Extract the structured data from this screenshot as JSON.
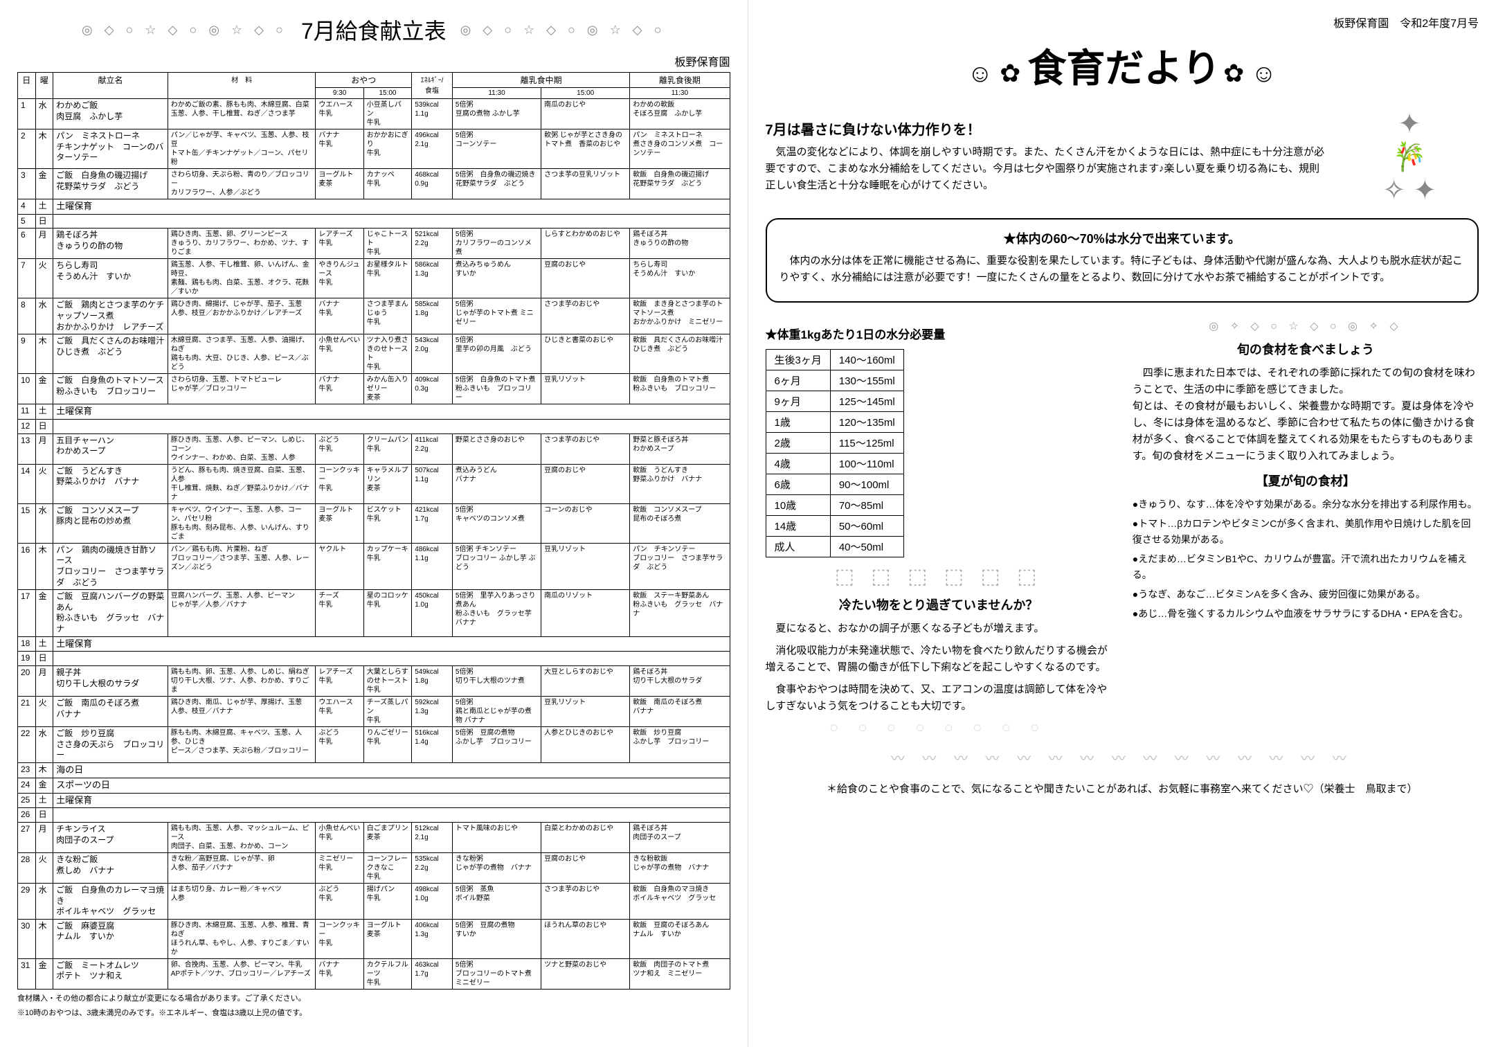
{
  "left": {
    "title": "7月給食献立表",
    "school": "板野保育園",
    "deco_icons": "◎ ◇ ○ ☆ ◇ ○ ◎ ☆ ◇ ○",
    "headers": {
      "day": "日",
      "dow": "曜",
      "menu": "献立名",
      "ingredients": "材　料",
      "snack": "おやつ",
      "snack930": "9:30",
      "snack1500": "15:00",
      "energy": "ｴﾈﾙｷﾞｰ/\n食塩",
      "wean_mid": "離乳食中期",
      "wean_mid1130": "11:30",
      "wean_mid1500": "15:00",
      "wean_late": "離乳食後期",
      "wean_late1130": "11:30"
    },
    "rows": [
      {
        "d": "1",
        "w": "水",
        "menu": "わかめご飯\n肉豆腐　ふかし芋",
        "ingr": "わかめご飯の素、豚もも肉、木綿豆腐、白菜\n玉葱、人参、干し椎茸、ねぎ／さつま芋",
        "s1": "ウエハース\n牛乳",
        "s2": "小豆蒸しパン\n牛乳",
        "e": "539kcal\n1.1g",
        "m1": "5倍粥\n豆腐の煮物 ふかし芋",
        "m2": "南瓜のおじや",
        "l": "わかめの軟飯\nそぼろ豆腐　ふかし芋"
      },
      {
        "d": "2",
        "w": "木",
        "menu": "パン　ミネストローネ\nチキンナゲット　コーンのバターソテー",
        "ingr": "パン／じゃが芋、キャベツ、玉葱、人参、枝豆\nトマト缶／チキンナゲット／コーン、パセリ粉",
        "s1": "バナナ\n牛乳",
        "s2": "おかかおにぎり\n牛乳",
        "e": "496kcal\n2.1g",
        "m1": "5倍粥\nコーンソテー",
        "m2": "軟粥 じゃが芋とさき身のトマト煮　香菜のおじや",
        "l": "パン　ミネストローネ\n煮さき身のコンソメ煮　コーンソテー"
      },
      {
        "d": "3",
        "w": "金",
        "menu": "ご飯　白身魚の磯辺揚げ\n花野菜サラダ　ぶどう",
        "ingr": "さわら切身、天ぷら粉、青のり／ブロッコリー\nカリフラワー、人参／ぶどう",
        "s1": "ヨーグルト\n麦茶",
        "s2": "カナッペ\n牛乳",
        "e": "468kcal\n0.9g",
        "m1": "5倍粥　白身魚の磯辺焼き\n花野菜サラダ　ぶどう",
        "m2": "さつま芋の豆乳リゾット",
        "l": "軟飯　白身魚の磯辺揚げ\n花野菜サラダ　ぶどう"
      },
      {
        "d": "4",
        "w": "土",
        "merged": "土曜保育"
      },
      {
        "d": "5",
        "w": "日",
        "merged": ""
      },
      {
        "d": "6",
        "w": "月",
        "menu": "鶏そぼろ丼\nきゅうりの酢の物",
        "ingr": "鶏ひき肉、玉葱、卵、グリーンピース\nきゅうり、カリフラワー、わかめ、ツナ、すりごま",
        "s1": "レアチーズ\n牛乳",
        "s2": "じゃこトースト\n牛乳",
        "e": "521kcal\n2.2g",
        "m1": "5倍粥\nカリフラワーのコンソメ煮",
        "m2": "しらすとわかめのおじや",
        "l": "鶏そぼろ丼\nきゅうりの酢の物"
      },
      {
        "d": "7",
        "w": "火",
        "menu": "ちらし寿司\nそうめん汁　すいか",
        "ingr": "鶏玉葱、人参、干し椎茸、卵、いんげん、金時豆、\n素麺、鶏もも肉、白菜、玉葱、オクラ、花麩／すいか",
        "s1": "やきりんジュース\n牛乳",
        "s2": "お星様タルト\n牛乳",
        "e": "586kcal\n1.3g",
        "m1": "煮込みちゅうめん\nすいか",
        "m2": "豆腐のおじや",
        "l": "ちらし寿司\nそうめん汁　すいか"
      },
      {
        "d": "8",
        "w": "水",
        "menu": "ご飯　鶏肉とさつま芋のケチャップソース煮\nおかかふりかけ　レアチーズ",
        "ingr": "鶏ひき肉、綿揚げ、じゃが芋、茄子、玉葱\n人参、枝豆／おかかふりかけ／レアチーズ",
        "s1": "バナナ\n牛乳",
        "s2": "さつま芋まんじゅう\n牛乳",
        "e": "585kcal\n1.8g",
        "m1": "5倍粥\nじゃが芋のトマト煮 ミニゼリー",
        "m2": "さつま芋のおじや",
        "l": "軟飯　まき身とさつま芋のトマトソース煮\nおかかふりかけ　ミニゼリー"
      },
      {
        "d": "9",
        "w": "木",
        "menu": "ご飯　具だくさんのお味噌汁\nひじき煮　ぶどう",
        "ingr": "木綿豆腐、さつま芋、玉葱、人参、油揚げ、ねぎ\n鶏もも肉、大豆、ひじき、人参、ピース／ぶどう",
        "s1": "小魚せんべい\n牛乳",
        "s2": "ツナ入り煮さきのせトースト\n牛乳",
        "e": "543kcal\n2.0g",
        "m1": "5倍粥\n里芋の卯の月風　ぶどう",
        "m2": "ひじきと書菜のおじや",
        "l": "軟飯　具だくさんのお味噌汁\nひじき煮　ぶどう"
      },
      {
        "d": "10",
        "w": "金",
        "menu": "ご飯　白身魚のトマトソース\n粉ふきいも　ブロッコリー",
        "ingr": "さわら切身、玉葱、トマトピューレ\nじゃが芋／ブロッコリー",
        "s1": "バナナ\n牛乳",
        "s2": "みかん缶入りゼリー\n麦茶",
        "e": "409kcal\n0.3g",
        "m1": "5倍粥　白身魚のトマト煮\n粉ふきいも　ブロッコリー",
        "m2": "豆乳リゾット",
        "l": "軟飯　白身魚のトマト煮\n粉ふきいも　ブロッコリー"
      },
      {
        "d": "11",
        "w": "土",
        "merged": "土曜保育"
      },
      {
        "d": "12",
        "w": "日",
        "merged": ""
      },
      {
        "d": "13",
        "w": "月",
        "menu": "五目チャーハン\nわかめスープ",
        "ingr": "豚ひき肉、玉葱、人参、ピーマン、しめじ、コーン\nウインナー、わかめ、白菜、玉葱、人参",
        "s1": "ぶどう\n牛乳",
        "s2": "クリームパン\n牛乳",
        "e": "411kcal\n2.2g",
        "m1": "野菜とささ身のおじや",
        "m2": "さつま芋のおじや",
        "l": "野菜と豚そぼろ丼\nわかめスープ"
      },
      {
        "d": "14",
        "w": "火",
        "menu": "ご飯　うどんすき\n野菜ふりかけ　バナナ",
        "ingr": "うどん、豚もも肉、焼き豆腐、白菜、玉葱、人参\n干し椎茸、焼麩、ねぎ／野菜ふりかけ／バナナ",
        "s1": "コーンクッキー\n牛乳",
        "s2": "キャラメルプリン\n麦茶",
        "e": "507kcal\n1.1g",
        "m1": "煮込みうどん\nバナナ",
        "m2": "豆腐のおじや",
        "l": "軟飯　うどんすき\n野菜ふりかけ　バナナ"
      },
      {
        "d": "15",
        "w": "水",
        "menu": "ご飯　コンソメスープ\n豚肉と昆布の炒め煮",
        "ingr": "キャベツ、ウインナー、玉葱、人参、コーン、パセリ粉\n豚もも肉、刻み昆布、人参、いんげん、すりごま",
        "s1": "ヨーグルト\n麦茶",
        "s2": "ビスケット\n牛乳",
        "e": "421kcal\n1.7g",
        "m1": "5倍粥\nキャベツのコンソメ煮",
        "m2": "コーンのおじや",
        "l": "軟飯　コンソメスープ\n昆布のそぼろ煮"
      },
      {
        "d": "16",
        "w": "木",
        "menu": "パン　鶏肉の磯焼き甘酢ソース\nブロッコリー　さつま芋サラダ　ぶどう",
        "ingr": "パン／鶏もも肉、片栗粉、ねぎ\nブロッコリー／さつま芋、玉葱、人参、レーズン／ぶどう",
        "s1": "ヤクルト",
        "s2": "カップケーキ\n牛乳",
        "e": "486kcal\n1.1g",
        "m1": "5倍粥 チキンソテー\nブロッコリー ふかし芋 ぶどう",
        "m2": "豆乳リゾット",
        "l": "パン　チキンソテー\nブロッコリー　さつま芋サラダ　ぶどう"
      },
      {
        "d": "17",
        "w": "金",
        "menu": "ご飯　豆腐ハンバーグの野菜あん\n粉ふきいも　グラッセ　バナナ",
        "ingr": "豆腐ハンバーグ、玉葱、人参、ピーマン\nじゃが芋／人参／バナナ",
        "s1": "チーズ\n牛乳",
        "s2": "星のコロッケ\n牛乳",
        "e": "450kcal\n1.0g",
        "m1": "5倍粥　里芋入りあっさり煮あん\n粉ふきいも　グラッセ芋　バナナ",
        "m2": "南瓜のリゾット",
        "l": "軟飯　ステーキ野菜あん\n粉ふきいも　グラッセ　バナナ"
      },
      {
        "d": "18",
        "w": "土",
        "merged": "土曜保育"
      },
      {
        "d": "19",
        "w": "日",
        "merged": ""
      },
      {
        "d": "20",
        "w": "月",
        "menu": "親子丼\n切り干し大根のサラダ",
        "ingr": "鶏もも肉、卵、玉葱、人参、しめじ、絹ねぎ\n切り干し大根、ツナ、人参、わかめ、すりごま",
        "s1": "レアチーズ\n牛乳",
        "s2": "大葉としらすのせトースト\n牛乳",
        "e": "549kcal\n1.8g",
        "m1": "5倍粥\n切り干し大根のツナ煮",
        "m2": "大豆としらすのおじや",
        "l": "鶏そぼろ丼\n切り干し大根のサラダ"
      },
      {
        "d": "21",
        "w": "火",
        "menu": "ご飯　南瓜のそぼろ煮\nバナナ",
        "ingr": "鶏ひき肉、南瓜、じゃが芋、厚揚げ、玉葱\n人参、枝豆／バナナ",
        "s1": "ウエハース\n牛乳",
        "s2": "チーズ蒸しパン\n牛乳",
        "e": "592kcal\n1.3g",
        "m1": "5倍粥\n鶏と南瓜とじゃが芋の煮物 バナナ",
        "m2": "豆乳リゾット",
        "l": "軟飯　南瓜のそぼろ煮\nバナナ"
      },
      {
        "d": "22",
        "w": "水",
        "menu": "ご飯　炒り豆腐\nささ身の天ぷら　ブロッコリー",
        "ingr": "豚もも肉、木綿豆腐、キャベツ、玉葱、人参、ひじき\nピース／さつま芋、天ぷら粉／ブロッコリー",
        "s1": "ぶどう\n牛乳",
        "s2": "りんごゼリー\n牛乳",
        "e": "516kcal\n1.4g",
        "m1": "5倍粥　豆腐の煮物\nふかし芋　ブロッコリー",
        "m2": "人参とひじきのおじや",
        "l": "軟飯　炒り豆腐\nふかし芋　ブロッコリー"
      },
      {
        "d": "23",
        "w": "木",
        "merged": "海の日"
      },
      {
        "d": "24",
        "w": "金",
        "merged": "スポーツの日"
      },
      {
        "d": "25",
        "w": "土",
        "merged": "土曜保育"
      },
      {
        "d": "26",
        "w": "日",
        "merged": ""
      },
      {
        "d": "27",
        "w": "月",
        "menu": "チキンライス\n肉団子のスープ",
        "ingr": "鶏もも肉、玉葱、人参、マッシュルーム、ピース\n肉団子、白菜、玉葱、わかめ、コーン",
        "s1": "小魚せんべい\n牛乳",
        "s2": "白ごまプリン\n麦茶",
        "e": "512kcal\n2.1g",
        "m1": "トマト風味のおじや",
        "m2": "白菜とわかめのおじや",
        "l": "鶏そぼろ丼\n肉団子のスープ"
      },
      {
        "d": "28",
        "w": "火",
        "menu": "きな粉ご飯\n煮しめ　バナナ",
        "ingr": "きな粉／高野豆腐、じゃが芋、卵\n人参、茄子／バナナ",
        "s1": "ミニゼリー\n牛乳",
        "s2": "コーンフレークきなこ\n牛乳",
        "e": "535kcal\n2.2g",
        "m1": "きな粉粥\nじゃが芋の煮物　バナナ",
        "m2": "豆腐のおじや",
        "l": "きな粉軟飯\nじゃが芋の煮物　バナナ"
      },
      {
        "d": "29",
        "w": "水",
        "menu": "ご飯　白身魚のカレーマヨ焼き\nボイルキャベツ　グラッセ",
        "ingr": "はまち切り身、カレー粉／キャベツ\n人参",
        "s1": "ぶどう\n牛乳",
        "s2": "揚げパン\n牛乳",
        "e": "498kcal\n1.0g",
        "m1": "5倍粥　蒸魚\nボイル野菜",
        "m2": "さつま芋のおじや",
        "l": "軟飯　白身魚のマヨ焼き\nボイルキャベツ　グラッセ"
      },
      {
        "d": "30",
        "w": "木",
        "menu": "ご飯　麻婆豆腐\nナムル　すいか",
        "ingr": "豚ひき肉、木綿豆腐、玉葱、人参、椎茸、青ねぎ\nほうれん草、もやし、人参、すりごま／すいか",
        "s1": "コーンクッキー\n牛乳",
        "s2": "ヨーグルト\n麦茶",
        "e": "406kcal\n1.3g",
        "m1": "5倍粥　豆腐の煮物\nすいか",
        "m2": "ほうれん草のおじや",
        "l": "軟飯　豆腐のそぼろあん\nナムル　すいか"
      },
      {
        "d": "31",
        "w": "金",
        "menu": "ご飯　ミートオムレツ\nポテト　ツナ和え",
        "ingr": "卵、合挽肉、玉葱、人参、ピーマン、牛乳\nAPポテト／ツナ、ブロッコリー／レアチーズ",
        "s1": "バナナ\n牛乳",
        "s2": "カクテルフルーツ\n牛乳",
        "e": "463kcal\n1.7g",
        "m1": "5倍粥\nブロッコリーのトマト煮 ミニゼリー",
        "m2": "ツナと野菜のおじや",
        "l": "軟飯　肉団子のトマト煮\nツナ和え　ミニゼリー"
      }
    ],
    "foot1": "食材購入・その他の都合により献立が変更になる場合があります。ご了承ください。",
    "foot2": "※10時のおやつは、3歳未満児のみです。※エネルギー、食塩は3歳以上児の値です。"
  },
  "right": {
    "hdr": "板野保育園　令和2年度7月号",
    "title_big": "食育だより",
    "sec1_h": "7月は暑さに負けない体力作りを！",
    "sec1_p": "気温の変化などにより、体調を崩しやすい時期です。また、たくさん汗をかくような日には、熱中症にも十分注意が必要ですので、こまめな水分補給をしてください。今月は七夕や園祭りが実施されます♪楽しい夏を乗り切る為にも、規則正しい食生活と十分な睡眠を心がけてください。",
    "box_h": "★体内の60～70%は水分で出来ています。",
    "box_p": "体内の水分は体を正常に機能させる為に、重要な役割を果たしています。特に子どもは、身体活動や代謝が盛んな為、大人よりも脱水症状が起こりやすく、水分補給には注意が必要です！一度にたくさんの量をとるより、数回に分けて水やお茶で補給することがポイントです。",
    "water_h": "★体重1kgあたり1日の水分必要量",
    "water_rows": [
      [
        "生後3ヶ月",
        "140～160ml"
      ],
      [
        "6ヶ月",
        "130～155ml"
      ],
      [
        "9ヶ月",
        "125～145ml"
      ],
      [
        "1歳",
        "120～135ml"
      ],
      [
        "2歳",
        "115～125ml"
      ],
      [
        "4歳",
        "100～110ml"
      ],
      [
        "6歳",
        "90～100ml"
      ],
      [
        "10歳",
        "70～85ml"
      ],
      [
        "14歳",
        "50～60ml"
      ],
      [
        "成人",
        "40～50ml"
      ]
    ],
    "cold_h": "冷たい物をとり過ぎていませんか？",
    "cold_p1": "夏になると、おなかの調子が悪くなる子どもが増えます。",
    "cold_p2": "消化吸収能力が未発達状態で、冷たい物を食べたり飲んだりする機会が増えることで、胃腸の働きが低下し下痢などを起こしやすくなるのです。",
    "cold_p3": "食事やおやつは時間を決めて、又、エアコンの温度は調節して体を冷やしすぎないよう気をつけることも大切です。",
    "season_h": "旬の食材を食べましょう",
    "season_p": "四季に恵まれた日本では、それぞれの季節に採れたての旬の食材を味わうことで、生活の中に季節を感じてきました。\n旬とは、その食材が最もおいしく、栄養豊かな時期です。夏は身体を冷やし、冬には身体を温めるなど、季節に合わせて私たちの体に働きかける食材が多く、食べることで体調を整えてくれる効果をもたらすものもあります。旬の食材をメニューにうまく取り入れてみましょう。",
    "summer_h": "【夏が旬の食材】",
    "bullets": [
      "●きゅうり、なす…体を冷やす効果がある。余分な水分を排出する利尿作用も。",
      "●トマト…βカロテンやビタミンCが多く含まれ、美肌作用や日焼けした肌を回復させる効果がある。",
      "●えだまめ…ビタミンB1やC、カリウムが豊富。汗で流れ出たカリウムを補える。",
      "●うなぎ、あなご…ビタミンAを多く含み、疲労回復に効果がある。",
      "●あじ…骨を強くするカルシウムや血液をサラサラにするDHA・EPAを含む。"
    ],
    "bottom": "＊給食のことや食事のことで、気になることや聞きたいことがあれば、お気軽に事務室へ来てください♡（栄養士　鳥取まで）",
    "deco_icons": "◎ ✧ ◇ ○ ☆ ◇ ○ ◎ ✧ ◇"
  }
}
